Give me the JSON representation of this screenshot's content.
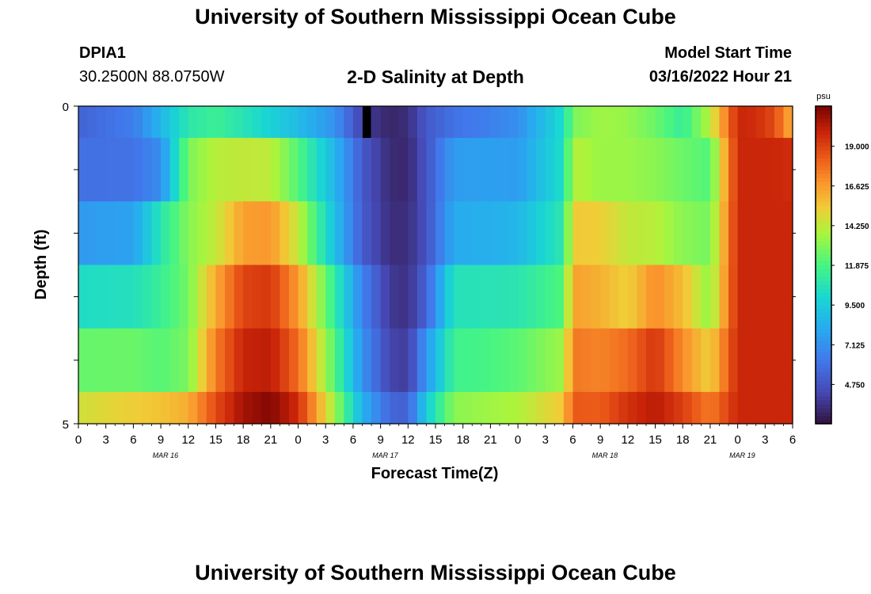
{
  "header": {
    "title": "University of Southern Mississippi Ocean Cube",
    "station_id": "DPIA1",
    "station_coords": "30.2500N  88.0750W",
    "plot_title": "2-D Salinity at Depth",
    "model_label": "Model Start Time",
    "model_start": "03/16/2022 Hour 21"
  },
  "footer": {
    "title": "University of Southern Mississippi Ocean Cube"
  },
  "chart_data": {
    "type": "heatmap",
    "title": "2-D Salinity at Depth",
    "xlabel": "Forecast Time(Z)",
    "ylabel": "Depth (ft)",
    "x_tick_labels": [
      "0",
      "3",
      "6",
      "9",
      "12",
      "15",
      "18",
      "21",
      "0",
      "3",
      "6",
      "9",
      "12",
      "15",
      "18",
      "21",
      "0",
      "3",
      "6",
      "9",
      "12",
      "15",
      "18",
      "21",
      "0",
      "3",
      "6"
    ],
    "date_labels": [
      "MAR 16",
      "MAR 17",
      "MAR 18",
      "MAR 19"
    ],
    "y_tick_labels": [
      "0",
      "5"
    ],
    "ylim": [
      5,
      0
    ],
    "colorbar": {
      "unit": "psu",
      "ticks": [
        "19.000",
        "16.625",
        "14.250",
        "11.875",
        "9.500",
        "7.125",
        "4.750"
      ],
      "range": [
        2.4,
        21.4
      ]
    },
    "depth_layers": [
      "0.0-0.5",
      "0.5-1.5",
      "1.5-2.5",
      "2.5-3.5",
      "3.5-4.5",
      "4.5-5.0"
    ],
    "anchor_hours": [
      0,
      6,
      9,
      12,
      15,
      18,
      21,
      24,
      28,
      31,
      34,
      36,
      38,
      41,
      45,
      48,
      53,
      54,
      57,
      60,
      63,
      66,
      69,
      72,
      74,
      76,
      78
    ],
    "layers": [
      {
        "depth": "0.0-0.5",
        "values": [
          5.4,
          6.4,
          8.6,
          10.9,
          11.5,
          10.7,
          9.8,
          8.8,
          7.2,
          4.0,
          3.1,
          3.4,
          5.0,
          6.0,
          6.5,
          7.1,
          10.3,
          12.9,
          13.6,
          13.4,
          12.6,
          11.3,
          14.1,
          19.8,
          19.6,
          18.8,
          16.0
        ]
      },
      {
        "depth": "0.5-1.5",
        "values": [
          5.9,
          6.0,
          7.0,
          12.9,
          14.1,
          14.3,
          14.2,
          12.1,
          8.6,
          5.0,
          3.3,
          3.2,
          4.8,
          7.6,
          7.7,
          7.6,
          10.4,
          14.1,
          13.5,
          13.5,
          13.2,
          12.6,
          12.1,
          19.8,
          19.8,
          19.8,
          19.6
        ]
      },
      {
        "depth": "1.5-2.5",
        "values": [
          7.5,
          7.8,
          10.8,
          13.1,
          14.3,
          16.6,
          16.8,
          14.3,
          9.0,
          5.1,
          3.4,
          3.4,
          4.7,
          8.2,
          8.3,
          8.6,
          11.0,
          15.4,
          15.3,
          14.3,
          14.1,
          13.2,
          12.8,
          19.8,
          19.8,
          19.8,
          19.8
        ]
      },
      {
        "depth": "2.5-3.5",
        "values": [
          10.3,
          10.5,
          11.4,
          12.8,
          16.3,
          19.0,
          19.3,
          16.7,
          11.2,
          6.6,
          3.8,
          3.5,
          5.4,
          10.6,
          10.7,
          10.8,
          12.1,
          16.6,
          16.1,
          15.2,
          17.1,
          15.8,
          13.2,
          19.8,
          19.8,
          19.8,
          19.8
        ]
      },
      {
        "depth": "3.5-4.5",
        "values": [
          12.5,
          12.6,
          12.2,
          12.9,
          17.5,
          19.9,
          20.1,
          17.9,
          12.1,
          7.2,
          4.2,
          3.9,
          7.4,
          11.6,
          11.9,
          12.3,
          13.6,
          17.6,
          17.3,
          17.9,
          19.4,
          17.1,
          15.2,
          19.8,
          19.8,
          19.8,
          19.8
        ]
      },
      {
        "depth": "4.5-5.0",
        "values": [
          14.6,
          15.3,
          15.6,
          16.2,
          18.8,
          20.6,
          21.2,
          19.6,
          13.6,
          8.4,
          5.5,
          5.3,
          9.6,
          13.2,
          13.6,
          13.9,
          15.5,
          18.4,
          18.3,
          19.5,
          20.2,
          19.1,
          17.5,
          19.8,
          19.8,
          19.8,
          19.8
        ]
      }
    ],
    "missing_marker": {
      "hour": 31,
      "depth": "0.0-0.5"
    },
    "grid": false,
    "legend": "colorbar-right"
  }
}
